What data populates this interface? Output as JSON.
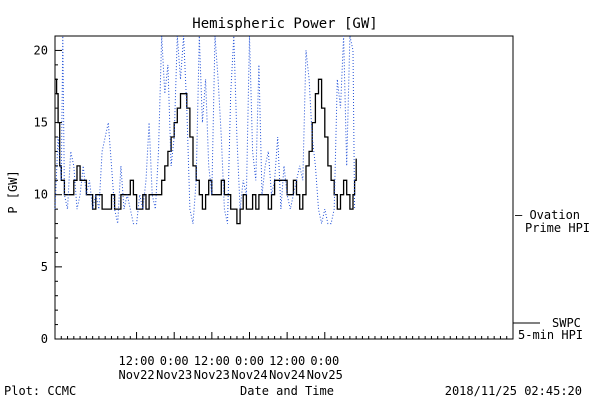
{
  "chart_data": {
    "type": "line",
    "title": "Hemispheric Power [GW]",
    "ylabel": "P [GW]",
    "xlabel": "Date and Time",
    "ylim": [
      0,
      21
    ],
    "xlim": [
      -62,
      84
    ],
    "yticks": [
      0,
      5,
      10,
      15,
      20
    ],
    "xticks": [
      {
        "x": -36,
        "line1": "12:00",
        "line2": "Nov22"
      },
      {
        "x": -24,
        "line1": "0:00",
        "line2": "Nov23"
      },
      {
        "x": -12,
        "line1": "12:00",
        "line2": "Nov23"
      },
      {
        "x": 0,
        "line1": "0:00",
        "line2": "Nov24"
      },
      {
        "x": 12,
        "line1": "12:00",
        "line2": "Nov24"
      },
      {
        "x": 24,
        "line1": "0:00",
        "line2": "Nov25"
      }
    ],
    "series": [
      {
        "name": "SWPC 5-min HPI",
        "color": "#000000",
        "style": "solid-step",
        "points": [
          [
            -62,
            18
          ],
          [
            -61.5,
            17
          ],
          [
            -61,
            15
          ],
          [
            -60.5,
            12
          ],
          [
            -60,
            11
          ],
          [
            -59,
            10
          ],
          [
            -58,
            10
          ],
          [
            -57,
            10
          ],
          [
            -56,
            11
          ],
          [
            -55,
            12
          ],
          [
            -54,
            11
          ],
          [
            -53,
            11
          ],
          [
            -52,
            10
          ],
          [
            -51,
            10
          ],
          [
            -50,
            9
          ],
          [
            -49,
            10
          ],
          [
            -48,
            10
          ],
          [
            -47,
            9
          ],
          [
            -46,
            9
          ],
          [
            -45,
            9
          ],
          [
            -44,
            10
          ],
          [
            -43,
            9
          ],
          [
            -42,
            9
          ],
          [
            -41,
            10
          ],
          [
            -40,
            10
          ],
          [
            -39,
            10
          ],
          [
            -38,
            11
          ],
          [
            -37,
            10
          ],
          [
            -36,
            9
          ],
          [
            -35,
            9
          ],
          [
            -34,
            10
          ],
          [
            -33,
            9
          ],
          [
            -32,
            10
          ],
          [
            -31,
            10
          ],
          [
            -30,
            10
          ],
          [
            -29,
            10
          ],
          [
            -28,
            11
          ],
          [
            -27,
            12
          ],
          [
            -26,
            13
          ],
          [
            -25,
            14
          ],
          [
            -24,
            15
          ],
          [
            -23,
            16
          ],
          [
            -22,
            17
          ],
          [
            -21,
            17
          ],
          [
            -20,
            16
          ],
          [
            -19,
            14
          ],
          [
            -18,
            12
          ],
          [
            -17,
            11
          ],
          [
            -16,
            10
          ],
          [
            -15,
            9
          ],
          [
            -14,
            10
          ],
          [
            -13,
            11
          ],
          [
            -12,
            10
          ],
          [
            -11,
            10
          ],
          [
            -10,
            10
          ],
          [
            -9,
            11
          ],
          [
            -8,
            10
          ],
          [
            -7,
            10
          ],
          [
            -6,
            9
          ],
          [
            -5,
            9
          ],
          [
            -4,
            8
          ],
          [
            -3,
            9
          ],
          [
            -2,
            10
          ],
          [
            -1,
            9
          ],
          [
            0,
            9
          ],
          [
            1,
            10
          ],
          [
            2,
            9
          ],
          [
            3,
            10
          ],
          [
            4,
            10
          ],
          [
            5,
            10
          ],
          [
            6,
            9
          ],
          [
            7,
            10
          ],
          [
            8,
            11
          ],
          [
            9,
            11
          ],
          [
            10,
            11
          ],
          [
            11,
            11
          ],
          [
            12,
            10
          ],
          [
            13,
            10
          ],
          [
            14,
            11
          ],
          [
            15,
            10
          ],
          [
            16,
            9
          ],
          [
            17,
            10
          ],
          [
            18,
            12
          ],
          [
            19,
            13
          ],
          [
            20,
            15
          ],
          [
            21,
            17
          ],
          [
            22,
            18
          ],
          [
            23,
            16
          ],
          [
            24,
            14
          ],
          [
            25,
            12
          ],
          [
            26,
            11
          ],
          [
            27,
            10
          ],
          [
            28,
            9
          ],
          [
            29,
            10
          ],
          [
            30,
            11
          ],
          [
            31,
            10
          ],
          [
            32,
            9
          ],
          [
            33,
            10
          ],
          [
            33.5,
            11
          ],
          [
            34,
            12.5
          ]
        ]
      },
      {
        "name": "Ovation Prime HPI",
        "color": "#1f4fd8",
        "style": "dotted",
        "points": [
          [
            -62,
            9
          ],
          [
            -61,
            14
          ],
          [
            -60,
            11
          ],
          [
            -59.5,
            21
          ],
          [
            -59,
            10
          ],
          [
            -58,
            9
          ],
          [
            -57,
            13
          ],
          [
            -56,
            12
          ],
          [
            -55,
            9
          ],
          [
            -54,
            10
          ],
          [
            -53,
            12
          ],
          [
            -52,
            10
          ],
          [
            -51,
            11
          ],
          [
            -50,
            9
          ],
          [
            -49,
            10
          ],
          [
            -48,
            9
          ],
          [
            -47,
            13
          ],
          [
            -46,
            14
          ],
          [
            -45,
            15
          ],
          [
            -44,
            12
          ],
          [
            -43,
            9
          ],
          [
            -42,
            8
          ],
          [
            -41,
            12
          ],
          [
            -40,
            9
          ],
          [
            -39,
            10
          ],
          [
            -38,
            9
          ],
          [
            -37,
            8
          ],
          [
            -36,
            8
          ],
          [
            -35,
            10
          ],
          [
            -34,
            9
          ],
          [
            -33,
            11
          ],
          [
            -32,
            15
          ],
          [
            -31,
            10
          ],
          [
            -30,
            9
          ],
          [
            -29,
            13
          ],
          [
            -28,
            21
          ],
          [
            -27,
            17
          ],
          [
            -26,
            19
          ],
          [
            -25,
            12
          ],
          [
            -24,
            14
          ],
          [
            -23,
            21
          ],
          [
            -22,
            18
          ],
          [
            -21,
            21
          ],
          [
            -20,
            16
          ],
          [
            -19,
            9
          ],
          [
            -18,
            8
          ],
          [
            -17,
            11
          ],
          [
            -16,
            21
          ],
          [
            -15,
            15
          ],
          [
            -14,
            18
          ],
          [
            -13,
            12
          ],
          [
            -12,
            10
          ],
          [
            -11,
            21
          ],
          [
            -10,
            18
          ],
          [
            -9,
            14
          ],
          [
            -8,
            9
          ],
          [
            -7,
            8
          ],
          [
            -6,
            17
          ],
          [
            -5,
            21
          ],
          [
            -4,
            14
          ],
          [
            -3,
            9
          ],
          [
            -2,
            11
          ],
          [
            -1,
            10
          ],
          [
            0,
            21
          ],
          [
            1,
            13
          ],
          [
            2,
            11
          ],
          [
            3,
            19
          ],
          [
            4,
            10
          ],
          [
            5,
            12
          ],
          [
            6,
            13
          ],
          [
            7,
            10
          ],
          [
            8,
            11
          ],
          [
            9,
            14
          ],
          [
            10,
            9
          ],
          [
            11,
            12
          ],
          [
            12,
            10
          ],
          [
            13,
            9
          ],
          [
            14,
            10
          ],
          [
            15,
            11
          ],
          [
            16,
            12
          ],
          [
            17,
            11
          ],
          [
            18,
            20
          ],
          [
            19,
            18
          ],
          [
            20,
            14
          ],
          [
            21,
            12
          ],
          [
            22,
            9
          ],
          [
            23,
            8
          ],
          [
            24,
            9
          ],
          [
            25,
            8
          ],
          [
            26,
            8
          ],
          [
            27,
            9
          ],
          [
            28,
            18
          ],
          [
            29,
            16
          ],
          [
            30,
            21
          ],
          [
            31,
            12
          ],
          [
            32,
            21
          ],
          [
            33,
            20
          ],
          [
            33.5,
            9
          ]
        ]
      }
    ],
    "legend": [
      {
        "line1": "— Ovation",
        "line2": "Prime HPI",
        "color": "#1f4fd8"
      },
      {
        "line1": "SWPC",
        "line2": "5-min HPI",
        "color": "#000000"
      }
    ]
  },
  "footer": {
    "left": "Plot: CCMC",
    "center": "Date and Time",
    "right": "2018/11/25 02:45:20"
  }
}
